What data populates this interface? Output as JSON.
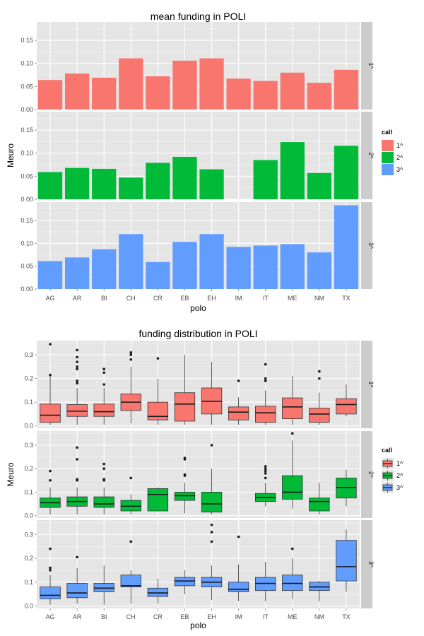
{
  "colors": {
    "1^": "#F8766D",
    "2^": "#00BA38",
    "3^": "#619CFF"
  },
  "chart_data": [
    {
      "type": "bar",
      "title": "mean funding in POLI",
      "xlabel": "polo",
      "ylabel": "Meuro",
      "ylim": [
        0,
        0.19
      ],
      "yticks": [
        "0.00",
        "0.05",
        "0.10",
        "0.15"
      ],
      "categories": [
        "AG",
        "AR",
        "BI",
        "CH",
        "CR",
        "EB",
        "EH",
        "IM",
        "IT",
        "ME",
        "NM",
        "TX"
      ],
      "facet_title": "call",
      "legend": {
        "title": "call",
        "position": "right",
        "entries": [
          "1^",
          "2^",
          "3^"
        ]
      },
      "grid": true,
      "series": [
        {
          "name": "1^",
          "values": [
            0.064,
            0.078,
            0.069,
            0.111,
            0.072,
            0.106,
            0.111,
            0.067,
            0.062,
            0.08,
            0.058,
            0.086
          ]
        },
        {
          "name": "2^",
          "values": [
            0.059,
            0.068,
            0.066,
            0.047,
            0.079,
            0.092,
            0.065,
            null,
            0.085,
            0.124,
            0.057,
            0.116
          ]
        },
        {
          "name": "3^",
          "values": [
            0.061,
            0.069,
            0.087,
            0.12,
            0.059,
            0.103,
            0.12,
            0.092,
            0.095,
            0.098,
            0.08,
            0.183
          ]
        }
      ]
    },
    {
      "type": "box",
      "title": "funding distribution in POLI",
      "xlabel": "polo",
      "ylabel": "Meuro",
      "ylim": [
        -0.01,
        0.36
      ],
      "yticks": [
        "0.0",
        "0.1",
        "0.2",
        "0.3"
      ],
      "categories": [
        "AG",
        "AR",
        "BI",
        "CH",
        "CR",
        "EB",
        "EH",
        "IM",
        "IT",
        "ME",
        "NM",
        "TX"
      ],
      "legend": {
        "title": "call",
        "position": "right",
        "entries": [
          "1^",
          "2^",
          "3^"
        ]
      },
      "grid": true,
      "series": [
        {
          "name": "1^",
          "boxes": [
            {
              "low": 0.005,
              "q1": 0.015,
              "median": 0.045,
              "q3": 0.092,
              "high": 0.21,
              "outliers": [
                0.215,
                0.345
              ]
            },
            {
              "low": 0.005,
              "q1": 0.04,
              "median": 0.062,
              "q3": 0.09,
              "high": 0.16,
              "outliers": [
                0.18,
                0.19,
                0.24,
                0.25,
                0.27,
                0.29,
                0.32
              ]
            },
            {
              "low": 0.005,
              "q1": 0.04,
              "median": 0.06,
              "q3": 0.092,
              "high": 0.16,
              "outliers": [
                0.175,
                0.225,
                0.24
              ]
            },
            {
              "low": 0.01,
              "q1": 0.065,
              "median": 0.1,
              "q3": 0.135,
              "high": 0.25,
              "outliers": [
                0.28,
                0.3,
                0.31
              ]
            },
            {
              "low": 0.005,
              "q1": 0.025,
              "median": 0.04,
              "q3": 0.1,
              "high": 0.2,
              "outliers": [
                0.285
              ]
            },
            {
              "low": 0.005,
              "q1": 0.02,
              "median": 0.092,
              "q3": 0.14,
              "high": 0.3,
              "outliers": []
            },
            {
              "low": 0.005,
              "q1": 0.05,
              "median": 0.104,
              "q3": 0.16,
              "high": 0.27,
              "outliers": []
            },
            {
              "low": 0.005,
              "q1": 0.025,
              "median": 0.058,
              "q3": 0.08,
              "high": 0.12,
              "outliers": [
                0.19
              ]
            },
            {
              "low": 0.005,
              "q1": 0.015,
              "median": 0.055,
              "q3": 0.083,
              "high": 0.15,
              "outliers": [
                0.19,
                0.2,
                0.26
              ]
            },
            {
              "low": 0.005,
              "q1": 0.03,
              "median": 0.08,
              "q3": 0.118,
              "high": 0.21,
              "outliers": []
            },
            {
              "low": 0.005,
              "q1": 0.015,
              "median": 0.05,
              "q3": 0.075,
              "high": 0.14,
              "outliers": [
                0.2,
                0.23
              ]
            },
            {
              "low": 0.04,
              "q1": 0.05,
              "median": 0.09,
              "q3": 0.115,
              "high": 0.175,
              "outliers": []
            }
          ]
        },
        {
          "name": "2^",
          "boxes": [
            {
              "low": 0.005,
              "q1": 0.035,
              "median": 0.055,
              "q3": 0.075,
              "high": 0.12,
              "outliers": [
                0.15,
                0.19
              ]
            },
            {
              "low": 0.005,
              "q1": 0.04,
              "median": 0.06,
              "q3": 0.08,
              "high": 0.12,
              "outliers": [
                0.15,
                0.155,
                0.24,
                0.29
              ]
            },
            {
              "low": 0.005,
              "q1": 0.035,
              "median": 0.05,
              "q3": 0.08,
              "high": 0.12,
              "outliers": [
                0.15,
                0.155,
                0.2,
                0.22
              ]
            },
            {
              "low": 0.005,
              "q1": 0.02,
              "median": 0.04,
              "q3": 0.065,
              "high": 0.09,
              "outliers": [
                0.16
              ]
            },
            {
              "low": 0.02,
              "q1": 0.02,
              "median": 0.09,
              "q3": 0.115,
              "high": 0.12,
              "outliers": []
            },
            {
              "low": 0.01,
              "q1": 0.065,
              "median": 0.085,
              "q3": 0.1,
              "high": 0.14,
              "outliers": [
                0.17,
                0.175,
                0.24,
                0.245
              ]
            },
            {
              "low": 0.005,
              "q1": 0.015,
              "median": 0.05,
              "q3": 0.1,
              "high": 0.2,
              "outliers": [
                0.3
              ]
            },
            {
              "low": null,
              "q1": null,
              "median": null,
              "q3": null,
              "high": null,
              "outliers": []
            },
            {
              "low": 0.04,
              "q1": 0.06,
              "median": 0.077,
              "q3": 0.095,
              "high": 0.14,
              "outliers": [
                0.16,
                0.18,
                0.19,
                0.2,
                0.21
              ]
            },
            {
              "low": 0.03,
              "q1": 0.07,
              "median": 0.1,
              "q3": 0.17,
              "high": 0.32,
              "outliers": [
                0.35
              ]
            },
            {
              "low": 0.005,
              "q1": 0.02,
              "median": 0.06,
              "q3": 0.075,
              "high": 0.14,
              "outliers": []
            },
            {
              "low": 0.04,
              "q1": 0.075,
              "median": 0.12,
              "q3": 0.16,
              "high": 0.195,
              "outliers": []
            }
          ]
        },
        {
          "name": "3^",
          "boxes": [
            {
              "low": 0.005,
              "q1": 0.03,
              "median": 0.045,
              "q3": 0.08,
              "high": 0.13,
              "outliers": [
                0.15,
                0.16,
                0.24
              ]
            },
            {
              "low": 0.01,
              "q1": 0.035,
              "median": 0.055,
              "q3": 0.095,
              "high": 0.16,
              "outliers": [
                0.205
              ]
            },
            {
              "low": 0.005,
              "q1": 0.06,
              "median": 0.075,
              "q3": 0.095,
              "high": 0.17,
              "outliers": []
            },
            {
              "low": 0.01,
              "q1": 0.08,
              "median": 0.085,
              "q3": 0.13,
              "high": 0.15,
              "outliers": [
                0.27
              ]
            },
            {
              "low": 0.01,
              "q1": 0.04,
              "median": 0.055,
              "q3": 0.075,
              "high": 0.115,
              "outliers": []
            },
            {
              "low": 0.05,
              "q1": 0.085,
              "median": 0.105,
              "q3": 0.12,
              "high": 0.15,
              "outliers": []
            },
            {
              "low": 0.025,
              "q1": 0.08,
              "median": 0.1,
              "q3": 0.12,
              "high": 0.17,
              "outliers": [
                0.27,
                0.31,
                0.34
              ]
            },
            {
              "low": 0.02,
              "q1": 0.06,
              "median": 0.07,
              "q3": 0.1,
              "high": 0.175,
              "outliers": [
                0.29
              ]
            },
            {
              "low": 0.02,
              "q1": 0.065,
              "median": 0.095,
              "q3": 0.12,
              "high": 0.185,
              "outliers": []
            },
            {
              "low": 0.03,
              "q1": 0.065,
              "median": 0.095,
              "q3": 0.13,
              "high": 0.2,
              "outliers": [
                0.24
              ]
            },
            {
              "low": 0.02,
              "q1": 0.065,
              "median": 0.08,
              "q3": 0.1,
              "high": 0.105,
              "outliers": []
            },
            {
              "low": 0.06,
              "q1": 0.105,
              "median": 0.165,
              "q3": 0.275,
              "high": 0.32,
              "outliers": []
            }
          ]
        }
      ]
    }
  ]
}
